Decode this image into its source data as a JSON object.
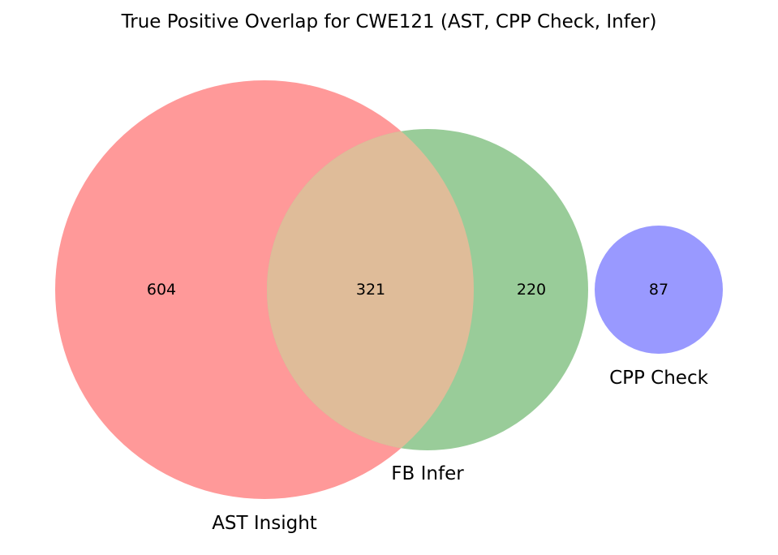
{
  "chart_data": {
    "type": "venn",
    "title": "True Positive Overlap for CWE121 (AST, CPP Check, Infer)",
    "sets": [
      {
        "name": "AST Insight",
        "color": "#ff9999"
      },
      {
        "name": "FB Infer",
        "color": "#99cc99"
      },
      {
        "name": "CPP Check",
        "color": "#9999ff"
      }
    ],
    "regions": [
      {
        "sets": [
          "AST Insight"
        ],
        "value": 604
      },
      {
        "sets": [
          "AST Insight",
          "FB Infer"
        ],
        "value": 321
      },
      {
        "sets": [
          "FB Infer"
        ],
        "value": 220
      },
      {
        "sets": [
          "CPP Check"
        ],
        "value": 87
      }
    ],
    "overlap_color": "#dfbc99"
  }
}
